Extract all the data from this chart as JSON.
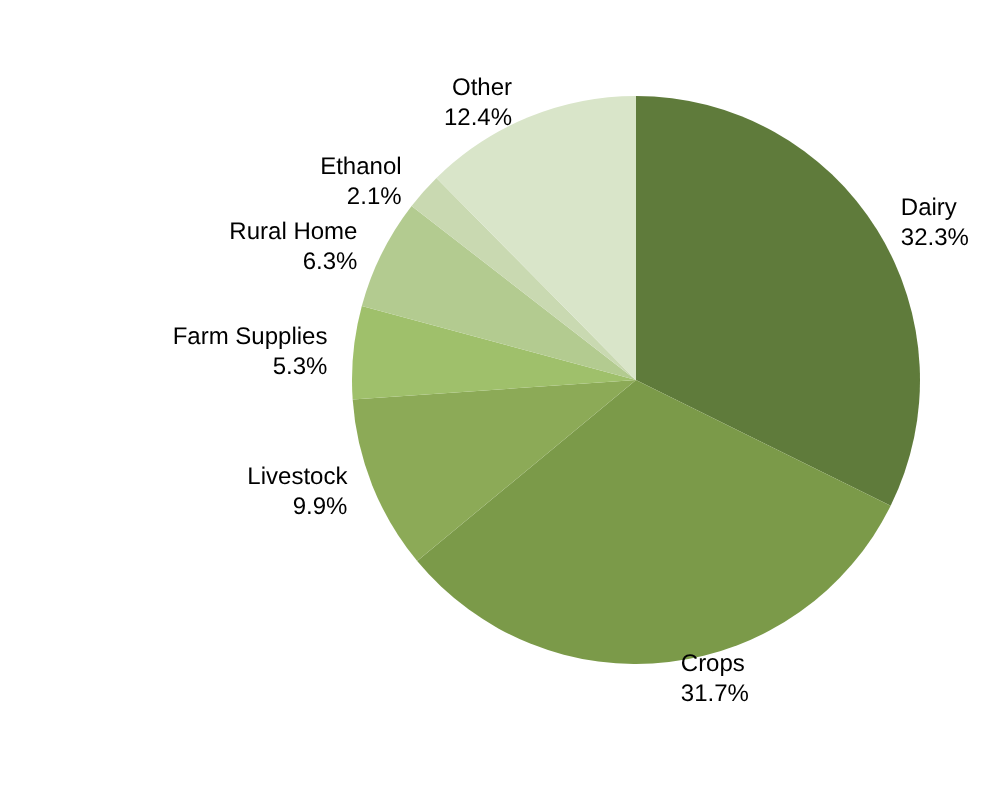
{
  "chart_data": {
    "type": "pie",
    "categories": [
      "Dairy",
      "Crops",
      "Livestock",
      "Farm Supplies",
      "Rural Home",
      "Ethanol",
      "Other"
    ],
    "values": [
      32.3,
      31.7,
      9.9,
      5.3,
      6.3,
      2.1,
      12.4
    ],
    "value_labels": [
      "32.3%",
      "31.7%",
      "9.9%",
      "5.3%",
      "6.3%",
      "2.1%",
      "12.4%"
    ],
    "colors": [
      "#5f7b3b",
      "#7b9a49",
      "#8caa57",
      "#9fc06b",
      "#b3cb90",
      "#c9d9b1",
      "#d9e5c9"
    ],
    "legend": false
  }
}
